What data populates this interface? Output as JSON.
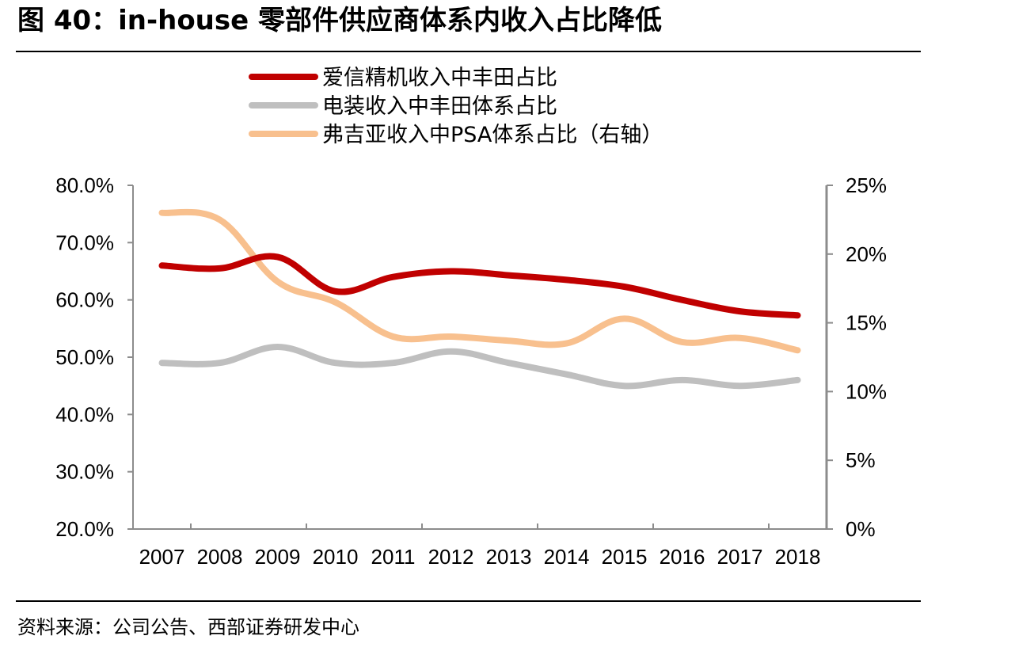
{
  "figure": {
    "title": "图 40：in-house 零部件供应商体系内收入占比降低",
    "source": "资料来源：公司公告、西部证券研发中心"
  },
  "chart_data": {
    "type": "line",
    "title": "in-house 零部件供应商体系内收入占比降低",
    "categories": [
      "2007",
      "2008",
      "2009",
      "2010",
      "2011",
      "2012",
      "2013",
      "2014",
      "2015",
      "2016",
      "2017",
      "2018"
    ],
    "series": [
      {
        "name": "爱信精机收入中丰田占比",
        "axis": "left",
        "color": "#C00000",
        "values": [
          66.0,
          65.5,
          67.5,
          61.5,
          64.0,
          65.0,
          64.3,
          63.5,
          62.3,
          60.0,
          58.0,
          57.3
        ]
      },
      {
        "name": "电装收入中丰田体系占比",
        "axis": "left",
        "color": "#BFBFBF",
        "values": [
          49.0,
          49.0,
          51.8,
          49.0,
          49.0,
          51.0,
          49.0,
          47.0,
          45.0,
          46.0,
          45.0,
          46.0
        ]
      },
      {
        "name": "弗吉亚收入中PSA体系占比（右轴）",
        "axis": "right",
        "color": "#F8C08E",
        "values": [
          23.0,
          22.5,
          18.0,
          16.5,
          14.0,
          14.0,
          13.7,
          13.5,
          15.3,
          13.6,
          13.9,
          13.0
        ]
      }
    ],
    "y_left": {
      "min": 20,
      "max": 80,
      "ticks": [
        80,
        70,
        60,
        50,
        40,
        30,
        20
      ],
      "tick_labels": [
        "80.0%",
        "70.0%",
        "60.0%",
        "50.0%",
        "40.0%",
        "30.0%",
        "20.0%"
      ]
    },
    "y_right": {
      "min": 0,
      "max": 25,
      "ticks": [
        25,
        20,
        15,
        10,
        5,
        0
      ],
      "tick_labels": [
        "25%",
        "20%",
        "15%",
        "10%",
        "5%",
        "0%"
      ]
    },
    "grid": false,
    "legend_position": "top-center"
  }
}
